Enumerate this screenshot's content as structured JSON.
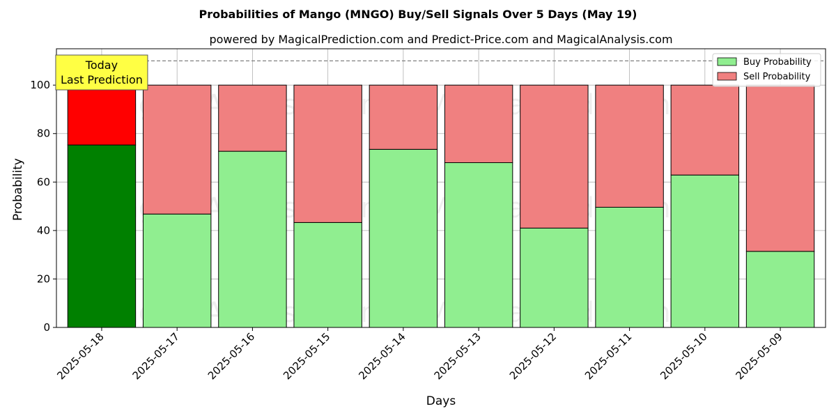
{
  "chart_data": {
    "type": "bar",
    "stacked": true,
    "title": "Probabilities of Mango (MNGO) Buy/Sell Signals Over 5 Days (May 19)",
    "subtitle": "powered by MagicalPrediction.com and Predict-Price.com and MagicalAnalysis.com",
    "xlabel": "Days",
    "ylabel": "Probability",
    "ylim": [
      0,
      115
    ],
    "yticks": [
      0,
      20,
      40,
      60,
      80,
      100
    ],
    "grid": true,
    "legend_position": "top-right",
    "categories": [
      "2025-05-18",
      "2025-05-17",
      "2025-05-16",
      "2025-05-15",
      "2025-05-14",
      "2025-05-13",
      "2025-05-12",
      "2025-05-11",
      "2025-05-10",
      "2025-05-09"
    ],
    "series": [
      {
        "name": "Buy Probability",
        "color": "#90ee90",
        "highlight_color": "#008000",
        "values": [
          75.3,
          46.8,
          72.7,
          43.3,
          73.5,
          68.0,
          41.0,
          49.6,
          62.9,
          31.4
        ]
      },
      {
        "name": "Sell Probability",
        "color": "#f08080",
        "highlight_color": "#ff0000",
        "values": [
          24.7,
          53.2,
          27.3,
          56.7,
          26.5,
          32.0,
          59.0,
          50.4,
          37.1,
          68.6
        ]
      }
    ],
    "highlight_index": 0,
    "reference_line": {
      "y": 110,
      "style": "dashed"
    },
    "annotation": {
      "text_lines": [
        "Today",
        "Last Prediction"
      ],
      "category_index": 0,
      "background": "#ffff44"
    },
    "watermarks": [
      "MagicalAnalysis.com",
      "MagicalPrediction.com"
    ]
  }
}
